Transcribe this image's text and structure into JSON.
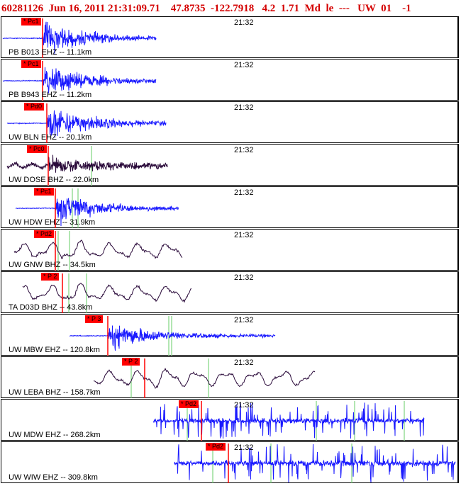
{
  "header": {
    "event_line": "60281126  Jun 16, 2011 21:31:09.71    47.8735  -122.7918   4.2  1.71  Md  le  ---   UW  01    -1"
  },
  "time_mark": "21:32",
  "colors": {
    "trace_blue": "#1a1aff",
    "trace_dark": "#2a0a3a",
    "pick_red": "#ff0000",
    "header_red": "#d40000",
    "theo_green": "#66cc66"
  },
  "panels": [
    {
      "label": "PB B013 EHZ -- 11.1km",
      "pick": "* Pc1",
      "trace": "blue"
    },
    {
      "label": "PB B943 EHZ -- 11.2km",
      "pick": "* Pc1",
      "trace": "blue"
    },
    {
      "label": "UW BLN EHZ -- 20.1km",
      "pick": "* Pd0",
      "trace": "blue"
    },
    {
      "label": "UW DOSE BHZ -- 22.0km",
      "pick": "* Pc0",
      "trace": "dark"
    },
    {
      "label": "UW HDW EHZ -- 31.9km",
      "pick": "* Pc1",
      "trace": "blue"
    },
    {
      "label": "UW GNW BHZ -- 34.5km",
      "pick": "* Pd2",
      "trace": "dark"
    },
    {
      "label": "TA D03D BHZ -- 43.8km",
      "pick": "* P 2",
      "trace": "dark"
    },
    {
      "label": "UW MBW EHZ -- 120.8km",
      "pick": "* P 3",
      "trace": "blue"
    },
    {
      "label": "UW LEBA BHZ -- 158.7km",
      "pick": "* P 2",
      "trace": "dark"
    },
    {
      "label": "UW MDW EHZ -- 268.2km",
      "pick": "* Pd2",
      "trace": "blue"
    },
    {
      "label": "UW WIW EHZ -- 309.8km",
      "pick": "* Pd2",
      "trace": "blue"
    }
  ]
}
